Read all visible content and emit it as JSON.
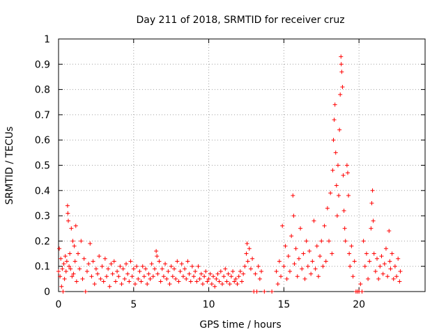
{
  "chart_data": {
    "type": "scatter",
    "title": "Day 211 of 2018, SRMTID for receiver cruz",
    "xlabel": "GPS time / hours",
    "ylabel": "SRMTID / TECUs",
    "xlim": [
      0,
      24.4
    ],
    "ylim": [
      0,
      1
    ],
    "xticks": [
      0,
      5,
      10,
      15,
      20
    ],
    "xtick_labels": [
      "0",
      "5",
      "10",
      "15",
      "20"
    ],
    "yticks": [
      0,
      0.1,
      0.2,
      0.3,
      0.4,
      0.5,
      0.6,
      0.7,
      0.8,
      0.9,
      1
    ],
    "ytick_labels": [
      "0",
      "0.1",
      "0.2",
      "0.3",
      "0.4",
      "0.5",
      "0.6",
      "0.7",
      "0.8",
      "0.9",
      "1"
    ],
    "grid": true,
    "marker": "+",
    "color": "#ff0000",
    "series": [
      {
        "name": "SRMTID",
        "points": [
          [
            0.0,
            0.08
          ],
          [
            0.05,
            0.17
          ],
          [
            0.1,
            0.06
          ],
          [
            0.15,
            0.13
          ],
          [
            0.2,
            0.02
          ],
          [
            0.25,
            0.09
          ],
          [
            0.3,
            0.0
          ],
          [
            0.35,
            0.11
          ],
          [
            0.4,
            0.05
          ],
          [
            0.45,
            0.14
          ],
          [
            0.5,
            0.08
          ],
          [
            0.55,
            0.12
          ],
          [
            0.6,
            0.34
          ],
          [
            0.62,
            0.31
          ],
          [
            0.65,
            0.28
          ],
          [
            0.7,
            0.1
          ],
          [
            0.75,
            0.15
          ],
          [
            0.8,
            0.09
          ],
          [
            0.85,
            0.25
          ],
          [
            0.9,
            0.06
          ],
          [
            0.95,
            0.2
          ],
          [
            1.0,
            0.07
          ],
          [
            1.05,
            0.18
          ],
          [
            1.1,
            0.12
          ],
          [
            1.15,
            0.26
          ],
          [
            1.2,
            0.04
          ],
          [
            1.3,
            0.15
          ],
          [
            1.4,
            0.09
          ],
          [
            1.5,
            0.2
          ],
          [
            1.6,
            0.05
          ],
          [
            1.7,
            0.13
          ],
          [
            1.8,
            0.0
          ],
          [
            1.9,
            0.08
          ],
          [
            2.0,
            0.11
          ],
          [
            2.1,
            0.19
          ],
          [
            2.2,
            0.06
          ],
          [
            2.3,
            0.12
          ],
          [
            2.4,
            0.03
          ],
          [
            2.5,
            0.09
          ],
          [
            2.6,
            0.07
          ],
          [
            2.7,
            0.14
          ],
          [
            2.8,
            0.05
          ],
          [
            2.9,
            0.1
          ],
          [
            3.0,
            0.04
          ],
          [
            3.1,
            0.13
          ],
          [
            3.2,
            0.06
          ],
          [
            3.3,
            0.09
          ],
          [
            3.4,
            0.02
          ],
          [
            3.5,
            0.11
          ],
          [
            3.6,
            0.07
          ],
          [
            3.7,
            0.12
          ],
          [
            3.8,
            0.04
          ],
          [
            3.9,
            0.08
          ],
          [
            4.0,
            0.06
          ],
          [
            4.1,
            0.1
          ],
          [
            4.2,
            0.03
          ],
          [
            4.3,
            0.09
          ],
          [
            4.4,
            0.05
          ],
          [
            4.5,
            0.11
          ],
          [
            4.6,
            0.07
          ],
          [
            4.7,
            0.04
          ],
          [
            4.8,
            0.12
          ],
          [
            4.9,
            0.06
          ],
          [
            5.0,
            0.09
          ],
          [
            5.1,
            0.03
          ],
          [
            5.2,
            0.1
          ],
          [
            5.3,
            0.05
          ],
          [
            5.4,
            0.08
          ],
          [
            5.5,
            0.04
          ],
          [
            5.6,
            0.1
          ],
          [
            5.7,
            0.06
          ],
          [
            5.8,
            0.09
          ],
          [
            5.9,
            0.03
          ],
          [
            6.0,
            0.07
          ],
          [
            6.1,
            0.05
          ],
          [
            6.2,
            0.11
          ],
          [
            6.3,
            0.06
          ],
          [
            6.4,
            0.09
          ],
          [
            6.5,
            0.16
          ],
          [
            6.55,
            0.14
          ],
          [
            6.6,
            0.07
          ],
          [
            6.7,
            0.12
          ],
          [
            6.8,
            0.04
          ],
          [
            6.9,
            0.09
          ],
          [
            7.0,
            0.06
          ],
          [
            7.1,
            0.11
          ],
          [
            7.2,
            0.05
          ],
          [
            7.3,
            0.08
          ],
          [
            7.4,
            0.03
          ],
          [
            7.5,
            0.1
          ],
          [
            7.6,
            0.06
          ],
          [
            7.7,
            0.09
          ],
          [
            7.8,
            0.05
          ],
          [
            7.9,
            0.12
          ],
          [
            8.0,
            0.04
          ],
          [
            8.1,
            0.08
          ],
          [
            8.2,
            0.11
          ],
          [
            8.3,
            0.06
          ],
          [
            8.4,
            0.09
          ],
          [
            8.5,
            0.05
          ],
          [
            8.6,
            0.12
          ],
          [
            8.7,
            0.07
          ],
          [
            8.8,
            0.04
          ],
          [
            8.9,
            0.1
          ],
          [
            9.0,
            0.06
          ],
          [
            9.1,
            0.08
          ],
          [
            9.2,
            0.04
          ],
          [
            9.3,
            0.1
          ],
          [
            9.4,
            0.05
          ],
          [
            9.5,
            0.07
          ],
          [
            9.6,
            0.03
          ],
          [
            9.7,
            0.06
          ],
          [
            9.8,
            0.08
          ],
          [
            9.9,
            0.04
          ],
          [
            10.0,
            0.05
          ],
          [
            10.1,
            0.07
          ],
          [
            10.2,
            0.03
          ],
          [
            10.3,
            0.06
          ],
          [
            10.4,
            0.02
          ],
          [
            10.5,
            0.05
          ],
          [
            10.6,
            0.07
          ],
          [
            10.7,
            0.04
          ],
          [
            10.8,
            0.08
          ],
          [
            10.9,
            0.03
          ],
          [
            11.0,
            0.06
          ],
          [
            11.1,
            0.09
          ],
          [
            11.2,
            0.04
          ],
          [
            11.3,
            0.07
          ],
          [
            11.4,
            0.03
          ],
          [
            11.5,
            0.06
          ],
          [
            11.6,
            0.08
          ],
          [
            11.7,
            0.04
          ],
          [
            11.8,
            0.05
          ],
          [
            11.9,
            0.03
          ],
          [
            12.0,
            0.06
          ],
          [
            12.1,
            0.08
          ],
          [
            12.2,
            0.04
          ],
          [
            12.3,
            0.07
          ],
          [
            12.4,
            0.1
          ],
          [
            12.5,
            0.15
          ],
          [
            12.55,
            0.19
          ],
          [
            12.6,
            0.12
          ],
          [
            12.7,
            0.17
          ],
          [
            12.8,
            0.09
          ],
          [
            12.9,
            0.13
          ],
          [
            13.0,
            0.0
          ],
          [
            13.1,
            0.07
          ],
          [
            13.2,
            0.0
          ],
          [
            13.3,
            0.1
          ],
          [
            13.4,
            0.05
          ],
          [
            13.5,
            0.08
          ],
          [
            13.7,
            0.0
          ],
          [
            14.2,
            0.0
          ],
          [
            14.5,
            0.08
          ],
          [
            14.6,
            0.03
          ],
          [
            14.7,
            0.12
          ],
          [
            14.8,
            0.06
          ],
          [
            14.9,
            0.26
          ],
          [
            15.0,
            0.1
          ],
          [
            15.1,
            0.18
          ],
          [
            15.2,
            0.05
          ],
          [
            15.3,
            0.14
          ],
          [
            15.4,
            0.08
          ],
          [
            15.5,
            0.22
          ],
          [
            15.6,
            0.38
          ],
          [
            15.65,
            0.3
          ],
          [
            15.7,
            0.11
          ],
          [
            15.8,
            0.17
          ],
          [
            15.9,
            0.06
          ],
          [
            16.0,
            0.13
          ],
          [
            16.1,
            0.25
          ],
          [
            16.2,
            0.09
          ],
          [
            16.3,
            0.15
          ],
          [
            16.4,
            0.05
          ],
          [
            16.5,
            0.2
          ],
          [
            16.6,
            0.1
          ],
          [
            16.7,
            0.16
          ],
          [
            16.8,
            0.07
          ],
          [
            16.9,
            0.12
          ],
          [
            17.0,
            0.28
          ],
          [
            17.1,
            0.09
          ],
          [
            17.2,
            0.18
          ],
          [
            17.3,
            0.06
          ],
          [
            17.4,
            0.14
          ],
          [
            17.5,
            0.2
          ],
          [
            17.6,
            0.1
          ],
          [
            17.7,
            0.26
          ],
          [
            17.8,
            0.12
          ],
          [
            17.9,
            0.33
          ],
          [
            18.0,
            0.2
          ],
          [
            18.1,
            0.39
          ],
          [
            18.2,
            0.15
          ],
          [
            18.25,
            0.48
          ],
          [
            18.3,
            0.6
          ],
          [
            18.35,
            0.68
          ],
          [
            18.4,
            0.74
          ],
          [
            18.45,
            0.55
          ],
          [
            18.5,
            0.42
          ],
          [
            18.55,
            0.3
          ],
          [
            18.6,
            0.5
          ],
          [
            18.65,
            0.38
          ],
          [
            18.7,
            0.64
          ],
          [
            18.75,
            0.78
          ],
          [
            18.8,
            0.93
          ],
          [
            18.82,
            0.9
          ],
          [
            18.85,
            0.87
          ],
          [
            18.9,
            0.81
          ],
          [
            18.95,
            0.46
          ],
          [
            19.0,
            0.32
          ],
          [
            19.05,
            0.25
          ],
          [
            19.1,
            0.2
          ],
          [
            19.2,
            0.5
          ],
          [
            19.25,
            0.47
          ],
          [
            19.3,
            0.38
          ],
          [
            19.35,
            0.15
          ],
          [
            19.4,
            0.1
          ],
          [
            19.5,
            0.18
          ],
          [
            19.6,
            0.06
          ],
          [
            19.7,
            0.12
          ],
          [
            19.8,
            0.0
          ],
          [
            19.9,
            0.0
          ],
          [
            20.0,
            0.0
          ],
          [
            20.1,
            0.03
          ],
          [
            20.2,
            0.0
          ],
          [
            20.3,
            0.2
          ],
          [
            20.4,
            0.1
          ],
          [
            20.5,
            0.15
          ],
          [
            20.6,
            0.05
          ],
          [
            20.7,
            0.12
          ],
          [
            20.8,
            0.25
          ],
          [
            20.85,
            0.35
          ],
          [
            20.9,
            0.4
          ],
          [
            20.95,
            0.28
          ],
          [
            21.0,
            0.15
          ],
          [
            21.1,
            0.08
          ],
          [
            21.2,
            0.13
          ],
          [
            21.3,
            0.05
          ],
          [
            21.4,
            0.1
          ],
          [
            21.5,
            0.14
          ],
          [
            21.6,
            0.07
          ],
          [
            21.7,
            0.11
          ],
          [
            21.8,
            0.17
          ],
          [
            21.9,
            0.06
          ],
          [
            22.0,
            0.24
          ],
          [
            22.05,
            0.12
          ],
          [
            22.1,
            0.09
          ],
          [
            22.2,
            0.15
          ],
          [
            22.3,
            0.05
          ],
          [
            22.4,
            0.1
          ],
          [
            22.5,
            0.06
          ],
          [
            22.6,
            0.13
          ],
          [
            22.7,
            0.04
          ],
          [
            22.75,
            0.08
          ]
        ]
      }
    ]
  }
}
